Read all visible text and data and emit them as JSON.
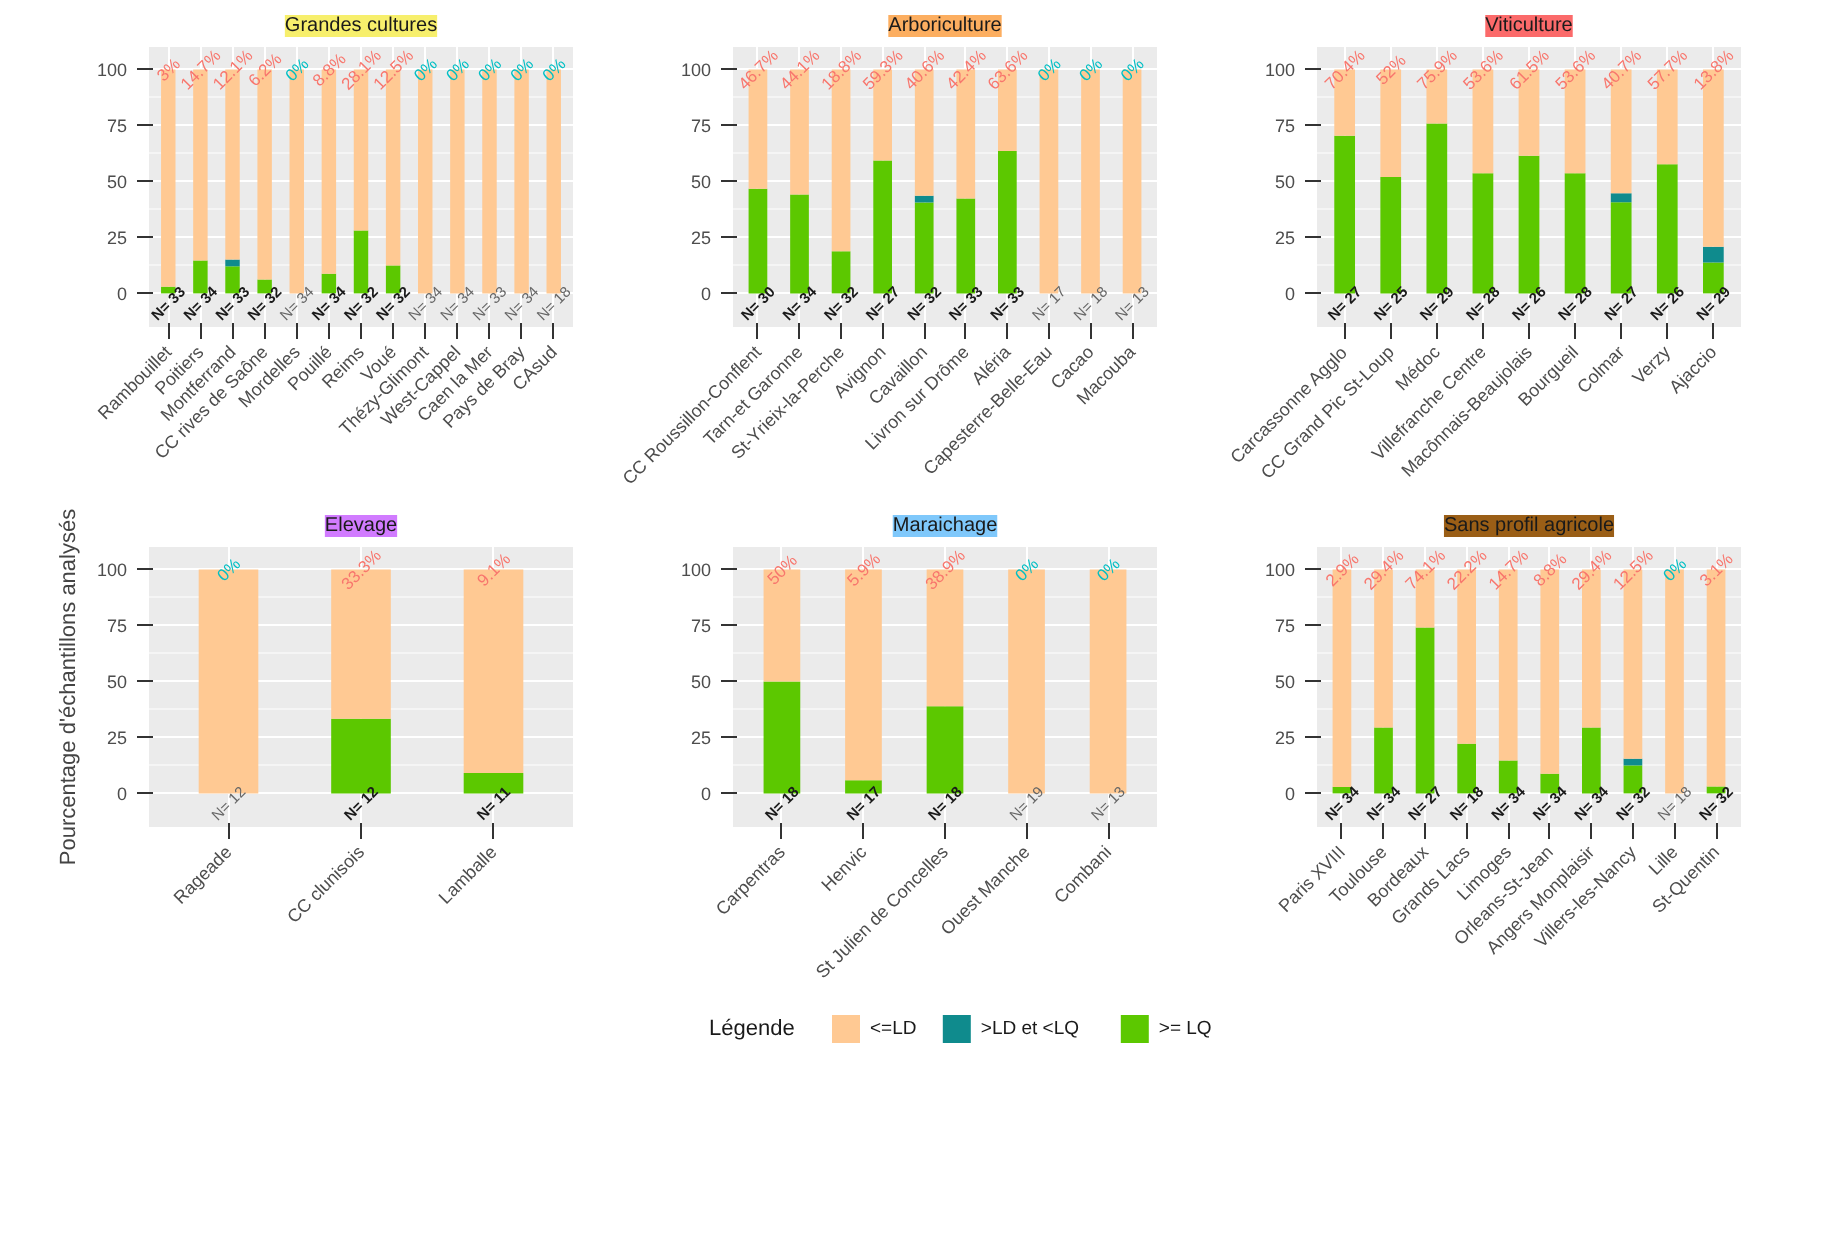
{
  "chart_data": [
    {
      "type": "bar",
      "stacked": true,
      "title": "Grandes cultures",
      "categories": [
        "Rambouillet",
        "Poitiers",
        "Montferrand",
        "CC rives de Saône",
        "Mordelles",
        "Pouillé",
        "Reims",
        "Voué",
        "Thézy-Glimont",
        "West-Cappel",
        "Caen la Mer",
        "Pays de Bray",
        "CAsud"
      ],
      "ylim": [
        -15,
        110
      ],
      "yticks": [
        0,
        25,
        50,
        75,
        100
      ],
      "grid": true,
      "series": [
        {
          "color": "#5cc800",
          "values": [
            3,
            14.7,
            12.1,
            6.2,
            0,
            8.8,
            28.1,
            12.5,
            0,
            0,
            0,
            0,
            0
          ]
        },
        {
          "color": "#0f8b8d",
          "values": [
            0,
            0,
            3,
            0,
            0,
            0,
            0,
            0,
            0,
            0,
            0,
            0,
            0
          ]
        },
        {
          "color": "#ffc993",
          "values": [
            97,
            85.3,
            84.9,
            93.8,
            100,
            91.2,
            71.9,
            87.5,
            100,
            100,
            100,
            100,
            100
          ]
        }
      ],
      "annotations": [
        "N= 33",
        "N= 34",
        "N= 33",
        "N= 32",
        "N= 34",
        "N= 34",
        "N= 32",
        "N= 32",
        "N= 34",
        "N= 34",
        "N= 33",
        "N= 34",
        "N= 18",
        {
          "text": "3%",
          "x": "Rambouillet",
          "y": 100
        },
        {
          "text": "14.7%",
          "x": "Poitiers",
          "y": 100
        },
        {
          "text": "12.1%",
          "x": "Montferrand",
          "y": 100
        },
        {
          "text": "6.2%",
          "x": "CC rives de Saône",
          "y": 100
        },
        {
          "text": "0%",
          "x": "Mordelles",
          "y": 100
        },
        {
          "text": "8.8%",
          "x": "Pouillé",
          "y": 100
        },
        {
          "text": "28.1%",
          "x": "Reims",
          "y": 100
        },
        {
          "text": "12.5%",
          "x": "Voué",
          "y": 100
        },
        {
          "text": "0%",
          "x": "Thézy-Glimont",
          "y": 100
        },
        {
          "text": "0%",
          "x": "West-Cappel",
          "y": 100
        },
        {
          "text": "0%",
          "x": "Caen la Mer",
          "y": 100
        },
        {
          "text": "0%",
          "x": "Pays de Bray",
          "y": 100
        },
        {
          "text": "0%",
          "x": "CAsud",
          "y": 100
        }
      ]
    },
    {
      "type": "bar",
      "stacked": true,
      "title": "Arboriculture",
      "categories": [
        "CC Roussillon-Conflent",
        "Tarn-et Garonne",
        "St-Yrieix-la-Perche",
        "Avignon",
        "Cavaillon",
        "Livron sur Drôme",
        "Aléria",
        "Capesterre-Belle-Eau",
        "Cacao",
        "Macouba"
      ],
      "ylim": [
        -15,
        110
      ],
      "yticks": [
        0,
        25,
        50,
        75,
        100
      ],
      "grid": true,
      "series": [
        {
          "color": "#5cc800",
          "values": [
            46.7,
            44.1,
            18.8,
            59.3,
            40.6,
            42.4,
            63.6,
            0,
            0,
            0
          ]
        },
        {
          "color": "#0f8b8d",
          "values": [
            0,
            0,
            0,
            0,
            3,
            0,
            0,
            0,
            0,
            0
          ]
        },
        {
          "color": "#ffc993",
          "values": [
            53.3,
            55.9,
            81.2,
            40.7,
            56.4,
            57.6,
            36.4,
            100,
            100,
            100
          ]
        }
      ],
      "annotations": [
        "N= 30",
        "N= 34",
        "N= 32",
        "N= 27",
        "N= 32",
        "N= 33",
        "N= 33",
        "N= 17",
        "N= 18",
        "N= 13",
        {
          "text": "46.7%",
          "x": "CC Roussillon-Conflent",
          "y": 100
        },
        {
          "text": "44.1%",
          "x": "Tarn-et Garonne",
          "y": 100
        },
        {
          "text": "18.8%",
          "x": "St-Yrieix-la-Perche",
          "y": 100
        },
        {
          "text": "59.3%",
          "x": "Avignon",
          "y": 100
        },
        {
          "text": "40.6%",
          "x": "Cavaillon",
          "y": 100
        },
        {
          "text": "42.4%",
          "x": "Livron sur Drôme",
          "y": 100
        },
        {
          "text": "63.6%",
          "x": "Aléria",
          "y": 100
        },
        {
          "text": "0%",
          "x": "Capesterre-Belle-Eau",
          "y": 100
        },
        {
          "text": "0%",
          "x": "Cacao",
          "y": 100
        },
        {
          "text": "0%",
          "x": "Macouba",
          "y": 100
        }
      ]
    },
    {
      "type": "bar",
      "stacked": true,
      "title": "Viticulture",
      "categories": [
        "Carcassonne Agglo",
        "CC Grand Pic St-Loup",
        "Médoc",
        "Villefranche Centre",
        "Macônnais-Beaujolais",
        "Bourgueil",
        "Colmar",
        "Verzy",
        "Ajaccio"
      ],
      "ylim": [
        -15,
        110
      ],
      "yticks": [
        0,
        25,
        50,
        75,
        100
      ],
      "grid": true,
      "series": [
        {
          "color": "#5cc800",
          "values": [
            70.4,
            52,
            75.9,
            53.6,
            61.5,
            53.6,
            40.7,
            57.7,
            13.8
          ]
        },
        {
          "color": "#0f8b8d",
          "values": [
            0,
            0,
            0,
            0,
            0,
            0,
            4,
            0,
            7
          ]
        },
        {
          "color": "#ffc993",
          "values": [
            29.6,
            48,
            24.1,
            46.4,
            38.5,
            46.4,
            55.3,
            42.3,
            79.2
          ]
        }
      ],
      "annotations": [
        "N= 27",
        "N= 25",
        "N= 29",
        "N= 28",
        "N= 26",
        "N= 28",
        "N= 27",
        "N= 26",
        "N= 29",
        {
          "text": "70.4%",
          "x": "Carcassonne Agglo",
          "y": 100
        },
        {
          "text": "52%",
          "x": "CC Grand Pic St-Loup",
          "y": 100
        },
        {
          "text": "75.9%",
          "x": "Médoc",
          "y": 100
        },
        {
          "text": "53.6%",
          "x": "Villefranche Centre",
          "y": 100
        },
        {
          "text": "61.5%",
          "x": "Macônnais-Beaujolais",
          "y": 100
        },
        {
          "text": "53.6%",
          "x": "Bourgueil",
          "y": 100
        },
        {
          "text": "40.7%",
          "x": "Colmar",
          "y": 100
        },
        {
          "text": "57.7%",
          "x": "Verzy",
          "y": 100
        },
        {
          "text": "13.8%",
          "x": "Ajaccio",
          "y": 100
        }
      ]
    },
    {
      "type": "bar",
      "stacked": true,
      "title": "Elevage",
      "ylabel": "Pourcentage d'échantillons analysés",
      "categories": [
        "Rageade",
        "CC clunisois",
        "Lamballe"
      ],
      "ylim": [
        -15,
        110
      ],
      "yticks": [
        0,
        25,
        50,
        75,
        100
      ],
      "grid": true,
      "series": [
        {
          "color": "#5cc800",
          "values": [
            0,
            33.3,
            9.1
          ]
        },
        {
          "color": "#0f8b8d",
          "values": [
            0,
            0,
            0
          ]
        },
        {
          "color": "#ffc993",
          "values": [
            100,
            66.7,
            90.9
          ]
        }
      ],
      "annotations": [
        "N= 12",
        "N= 12",
        "N= 11",
        {
          "text": "0%",
          "x": "Rageade",
          "y": 100
        },
        {
          "text": "33.3%",
          "x": "CC clunisois",
          "y": 100
        },
        {
          "text": "9.1%",
          "x": "Lamballe",
          "y": 100
        }
      ]
    },
    {
      "type": "bar",
      "stacked": true,
      "title": "Maraichage",
      "categories": [
        "Carpentras",
        "Henvic",
        "St Julien de Concelles",
        "Ouest Manche",
        "Combani"
      ],
      "ylim": [
        -15,
        110
      ],
      "yticks": [
        0,
        25,
        50,
        75,
        100
      ],
      "grid": true,
      "legend": "bottom",
      "legend_title": "Légende",
      "series": [
        {
          "name": ">= LQ",
          "color": "#5cc800",
          "values": [
            50,
            5.9,
            38.9,
            0,
            0
          ]
        },
        {
          "name": ">LD et <LQ",
          "color": "#0f8b8d",
          "values": [
            0,
            0,
            0,
            0,
            0
          ]
        },
        {
          "name": "<=LD",
          "color": "#ffc993",
          "values": [
            50,
            94.1,
            61.1,
            100,
            100
          ]
        }
      ],
      "annotations": [
        "N= 18",
        "N= 17",
        "N= 18",
        "N= 19",
        "N= 13",
        {
          "text": "50%",
          "x": "Carpentras",
          "y": 100
        },
        {
          "text": "5.9%",
          "x": "Henvic",
          "y": 100
        },
        {
          "text": "38.9%",
          "x": "St Julien de Concelles",
          "y": 100
        },
        {
          "text": "0%",
          "x": "Ouest Manche",
          "y": 100
        },
        {
          "text": "0%",
          "x": "Combani",
          "y": 100
        }
      ]
    },
    {
      "type": "bar",
      "stacked": true,
      "title": "Sans profil agricole",
      "categories": [
        "Paris XVIII",
        "Toulouse",
        "Bordeaux",
        "Grands Lacs",
        "Limoges",
        "Orleans-St-Jean",
        "Angers Monplaisir",
        "Villers-les-Nancy",
        "Lille",
        "St-Quentin"
      ],
      "ylim": [
        -15,
        110
      ],
      "yticks": [
        0,
        25,
        50,
        75,
        100
      ],
      "grid": true,
      "series": [
        {
          "color": "#5cc800",
          "values": [
            2.9,
            29.4,
            74.1,
            22.2,
            14.7,
            8.8,
            29.4,
            12.5,
            0,
            3.1
          ]
        },
        {
          "color": "#0f8b8d",
          "values": [
            0,
            0,
            0,
            0,
            0,
            0,
            0,
            3,
            0,
            0
          ]
        },
        {
          "color": "#ffc993",
          "values": [
            97.1,
            70.6,
            25.9,
            77.8,
            85.3,
            91.2,
            70.6,
            84.5,
            100,
            96.9
          ]
        }
      ],
      "annotations": [
        "N= 34",
        "N= 34",
        "N= 27",
        "N= 18",
        "N= 34",
        "N= 34",
        "N= 34",
        "N= 32",
        "N= 18",
        "N= 32",
        {
          "text": "2.9%",
          "x": "Paris XVIII",
          "y": 100
        },
        {
          "text": "29.4%",
          "x": "Toulouse",
          "y": 100
        },
        {
          "text": "74.1%",
          "x": "Bordeaux",
          "y": 100
        },
        {
          "text": "22.2%",
          "x": "Grands Lacs",
          "y": 100
        },
        {
          "text": "14.7%",
          "x": "Limoges",
          "y": 100
        },
        {
          "text": "8.8%",
          "x": "Orleans-St-Jean",
          "y": 100
        },
        {
          "text": "29.4%",
          "x": "Angers Monplaisir",
          "y": 100
        },
        {
          "text": "12.5%",
          "x": "Villers-les-Nancy",
          "y": 100
        },
        {
          "text": "0%",
          "x": "Lille",
          "y": 100
        },
        {
          "text": "3.1%",
          "x": "St-Quentin",
          "y": 100
        }
      ]
    }
  ]
}
